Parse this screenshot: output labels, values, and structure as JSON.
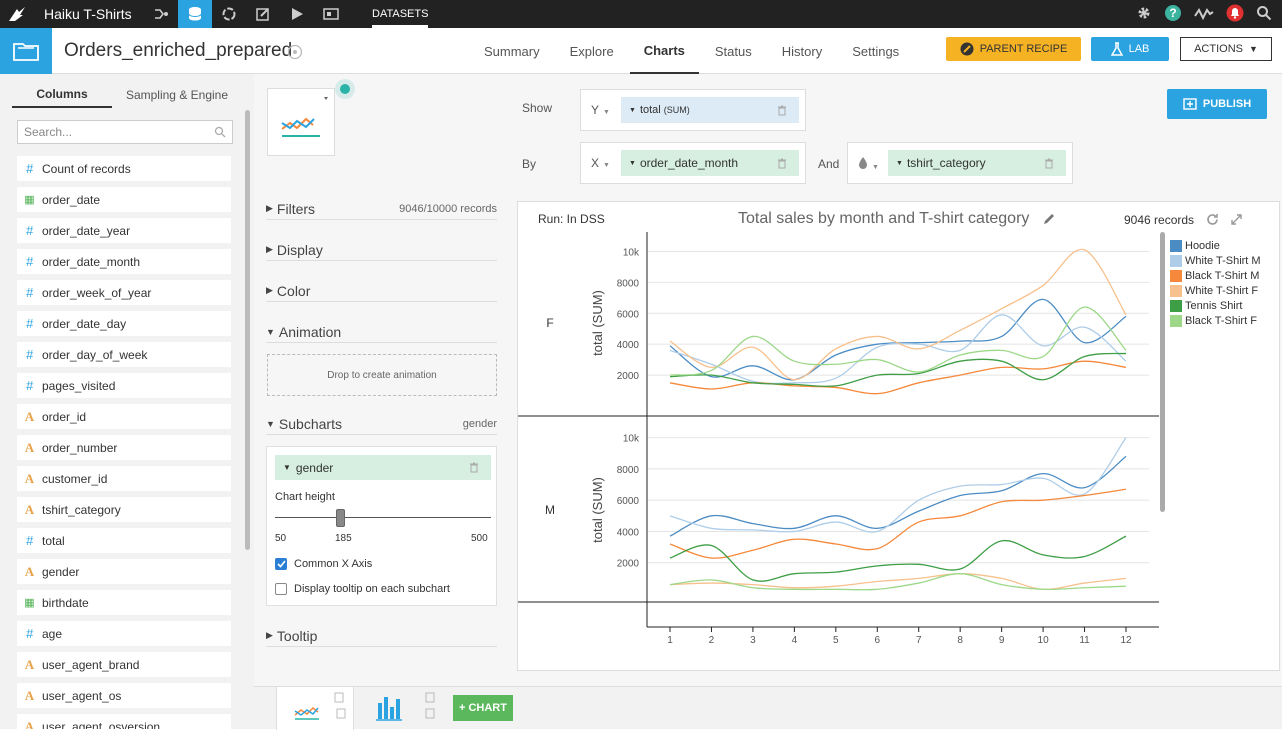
{
  "app": {
    "project": "Haiku T-Shirts",
    "section": "DATASETS"
  },
  "dataset": {
    "name": "Orders_enriched_prepared"
  },
  "tabs": [
    "Summary",
    "Explore",
    "Charts",
    "Status",
    "History",
    "Settings"
  ],
  "active_tab": "Charts",
  "buttons": {
    "parent_recipe": "PARENT RECIPE",
    "lab": "LAB",
    "actions": "ACTIONS",
    "publish": "PUBLISH",
    "add_chart": "+ CHART"
  },
  "left_panel": {
    "tabs": [
      "Columns",
      "Sampling & Engine"
    ],
    "search_placeholder": "Search...",
    "columns": [
      {
        "name": "Count of records",
        "type": "num"
      },
      {
        "name": "order_date",
        "type": "date"
      },
      {
        "name": "order_date_year",
        "type": "num"
      },
      {
        "name": "order_date_month",
        "type": "num"
      },
      {
        "name": "order_week_of_year",
        "type": "num"
      },
      {
        "name": "order_date_day",
        "type": "num"
      },
      {
        "name": "order_day_of_week",
        "type": "num"
      },
      {
        "name": "pages_visited",
        "type": "num"
      },
      {
        "name": "order_id",
        "type": "str"
      },
      {
        "name": "order_number",
        "type": "str"
      },
      {
        "name": "customer_id",
        "type": "str"
      },
      {
        "name": "tshirt_category",
        "type": "str"
      },
      {
        "name": "total",
        "type": "num"
      },
      {
        "name": "gender",
        "type": "str"
      },
      {
        "name": "birthdate",
        "type": "date"
      },
      {
        "name": "age",
        "type": "num"
      },
      {
        "name": "user_agent_brand",
        "type": "str"
      },
      {
        "name": "user_agent_os",
        "type": "str"
      },
      {
        "name": "user_agent_osversion",
        "type": "str"
      }
    ]
  },
  "settings": {
    "filters": "Filters",
    "filters_count": "9046/10000 records",
    "display": "Display",
    "color": "Color",
    "animation": "Animation",
    "drop_animation": "Drop to create animation",
    "subcharts": "Subcharts",
    "subcharts_value": "gender",
    "subchart_chip": "gender",
    "chart_height_label": "Chart height",
    "slider_min": "50",
    "slider_value": "185",
    "slider_max": "500",
    "slider_fraction": 0.3,
    "common_x_axis": "Common X Axis",
    "common_x_checked": true,
    "display_tooltip": "Display tooltip on each subchart",
    "display_tooltip_checked": false,
    "tooltip": "Tooltip"
  },
  "shelves": {
    "show_label": "Show",
    "by_label": "By",
    "and_label": "And",
    "y_axis": "Y",
    "x_axis": "X",
    "y_measure": "total",
    "y_agg": "(SUM)",
    "x_dim": "order_date_month",
    "color_dim": "tshirt_category"
  },
  "chart_header": {
    "run": "Run: In DSS",
    "title": "Total sales by month and T-shirt category",
    "records": "9046 records"
  },
  "chart_data": {
    "type": "line",
    "title": "Total sales by month and T-shirt category",
    "ylabel": "total (SUM)",
    "x": [
      1,
      2,
      3,
      4,
      5,
      6,
      7,
      8,
      9,
      10,
      11,
      12
    ],
    "y_ticks": [
      "2000",
      "4000",
      "6000",
      "8000",
      "10k"
    ],
    "ylim": [
      0,
      11000
    ],
    "legend_position": "right",
    "subcharts": [
      {
        "label": "F",
        "series": [
          {
            "name": "Hoodie",
            "color": "#4c8cc4",
            "values": [
              3900,
              1900,
              2600,
              1700,
              3300,
              4000,
              4100,
              4200,
              4500,
              6900,
              4100,
              5800
            ]
          },
          {
            "name": "White T-Shirt M",
            "color": "#aecde8",
            "values": [
              3600,
              2700,
              1600,
              1500,
              1800,
              3800,
              4000,
              3600,
              5900,
              3900,
              5100,
              2900
            ]
          },
          {
            "name": "Black T-Shirt M",
            "color": "#f5883a",
            "values": [
              1500,
              1100,
              1500,
              1300,
              1200,
              800,
              1500,
              2000,
              2500,
              2400,
              2900,
              2500
            ]
          },
          {
            "name": "White T-Shirt F",
            "color": "#f7c08c",
            "values": [
              4200,
              2500,
              3800,
              1700,
              3700,
              4500,
              3700,
              4900,
              6300,
              7800,
              10100,
              5900
            ]
          },
          {
            "name": "Tennis Shirt",
            "color": "#3e9e46",
            "values": [
              1900,
              2000,
              1500,
              1400,
              1300,
              2000,
              2100,
              2900,
              2900,
              1700,
              3200,
              3400
            ]
          },
          {
            "name": "Black T-Shirt F",
            "color": "#9dd889",
            "values": [
              2000,
              2300,
              4500,
              2900,
              2700,
              3000,
              2200,
              3300,
              3600,
              3200,
              6400,
              3600
            ]
          }
        ]
      },
      {
        "label": "M",
        "series": [
          {
            "name": "Hoodie",
            "color": "#4c8cc4",
            "values": [
              3700,
              5000,
              4500,
              4200,
              5000,
              4200,
              5300,
              6300,
              6600,
              7700,
              6800,
              8800
            ]
          },
          {
            "name": "White T-Shirt M",
            "color": "#aecde8",
            "values": [
              5000,
              4200,
              4100,
              4000,
              4600,
              4000,
              6000,
              6900,
              7000,
              7400,
              6400,
              10000
            ]
          },
          {
            "name": "Black T-Shirt M",
            "color": "#f5883a",
            "values": [
              3200,
              2300,
              2800,
              3500,
              3200,
              2900,
              4600,
              5000,
              5900,
              6000,
              6300,
              6700
            ]
          },
          {
            "name": "White T-Shirt F",
            "color": "#f7c08c",
            "values": [
              600,
              700,
              600,
              400,
              500,
              800,
              1000,
              1300,
              1000,
              300,
              700,
              1000
            ]
          },
          {
            "name": "Tennis Shirt",
            "color": "#3e9e46",
            "values": [
              2300,
              3100,
              900,
              1300,
              1400,
              1800,
              1900,
              1600,
              3400,
              2500,
              2400,
              3700
            ]
          },
          {
            "name": "Black T-Shirt F",
            "color": "#9dd889",
            "values": [
              600,
              900,
              400,
              300,
              300,
              300,
              700,
              1300,
              600,
              300,
              400,
              500
            ]
          }
        ]
      }
    ]
  }
}
